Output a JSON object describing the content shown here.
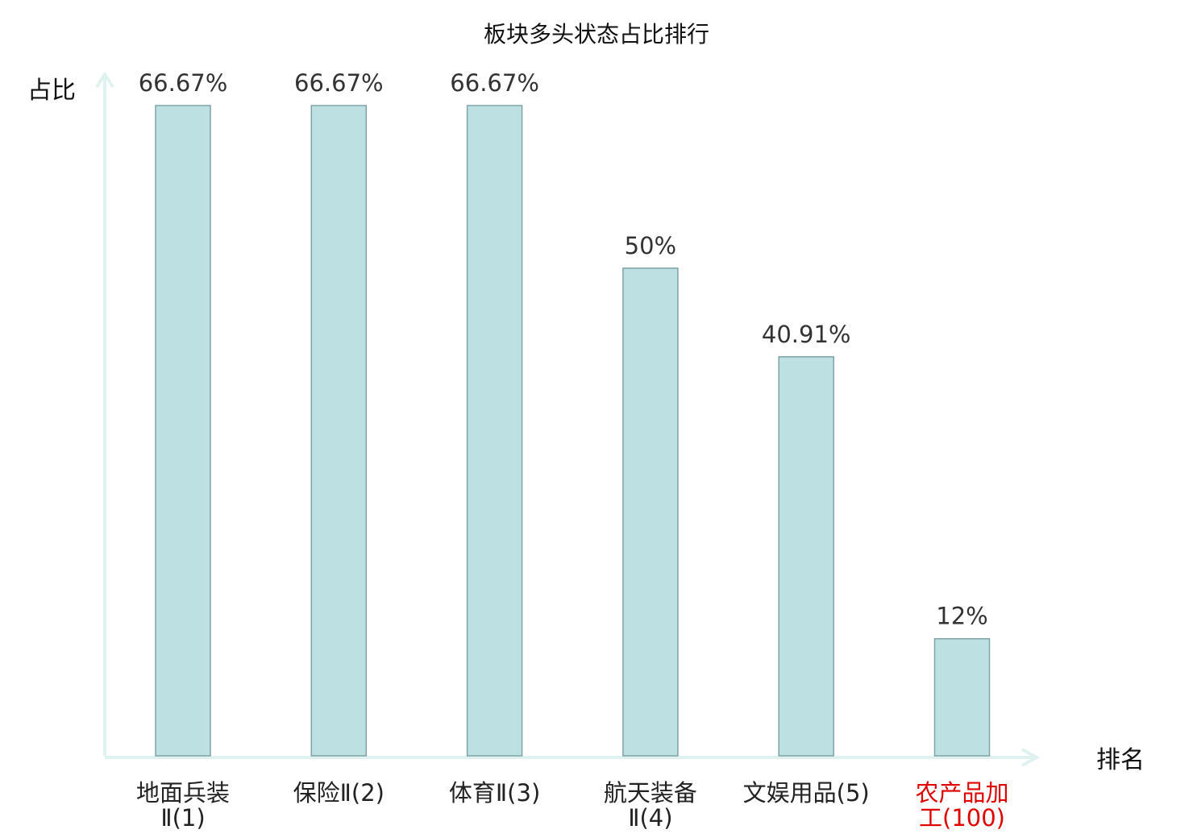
{
  "chart_data": {
    "type": "bar",
    "title": "板块多头状态占比排行",
    "ylabel": "占比",
    "xlabel": "排名",
    "categories": [
      {
        "line1": "地面兵装",
        "line2": "Ⅱ(1)"
      },
      {
        "line1": "保险Ⅱ(2)",
        "line2": ""
      },
      {
        "line1": "体育Ⅱ(3)",
        "line2": ""
      },
      {
        "line1": "航天装备",
        "line2": "Ⅱ(4)"
      },
      {
        "line1": "文娱用品(5)",
        "line2": ""
      },
      {
        "line1": "农产品加",
        "line2": "工(100)"
      }
    ],
    "values": [
      66.67,
      66.67,
      66.67,
      50,
      40.91,
      12
    ],
    "value_labels": [
      "66.67%",
      "66.67%",
      "66.67%",
      "50%",
      "40.91%",
      "12%"
    ],
    "highlight_category_index": 5,
    "ylim": [
      0,
      70
    ],
    "grid": false,
    "legend": "none"
  },
  "colors": {
    "bar_fill": "#bde0e3",
    "bar_stroke": "#7fa3a6",
    "axis": "#dff2ef",
    "tick_text": "#222222",
    "highlight_text": "#e00000",
    "value_text": "#333333"
  }
}
